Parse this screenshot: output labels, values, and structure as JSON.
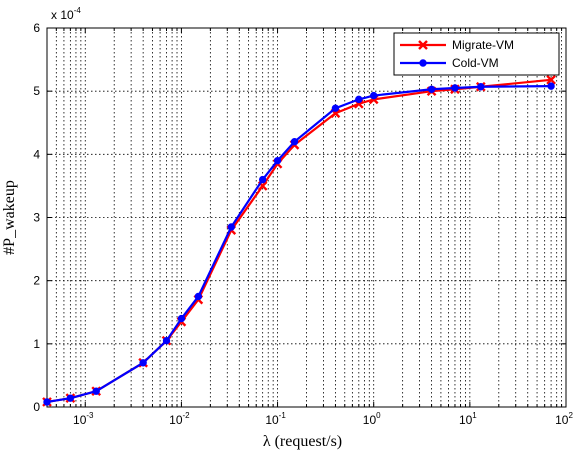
{
  "chart_data": {
    "type": "line",
    "title": "",
    "xlabel": "λ (request/s)",
    "ylabel": "#P_wakeup",
    "x_scale": "log",
    "xlim": [
      0.0004,
      100
    ],
    "ylim": [
      0,
      0.0006
    ],
    "y_multiplier_label": "x 10",
    "y_multiplier_exponent": "-4",
    "x_ticks": [
      {
        "base": "10",
        "exp": "-3",
        "value": 0.001
      },
      {
        "base": "10",
        "exp": "-2",
        "value": 0.01
      },
      {
        "base": "10",
        "exp": "-1",
        "value": 0.1
      },
      {
        "base": "10",
        "exp": "0",
        "value": 1
      },
      {
        "base": "10",
        "exp": "1",
        "value": 10
      },
      {
        "base": "10",
        "exp": "2",
        "value": 100
      }
    ],
    "y_ticks": [
      {
        "label": "0",
        "value": 0
      },
      {
        "label": "1",
        "value": 0.0001
      },
      {
        "label": "2",
        "value": 0.0002
      },
      {
        "label": "3",
        "value": 0.0003
      },
      {
        "label": "4",
        "value": 0.0004
      },
      {
        "label": "5",
        "value": 0.0005
      },
      {
        "label": "6",
        "value": 0.0006
      }
    ],
    "grid": true,
    "legend_position": "top-right",
    "series": [
      {
        "name": "Migrate-VM",
        "color": "#ff0000",
        "marker": "x",
        "x": [
          0.0004,
          0.0007,
          0.0013,
          0.004,
          0.007,
          0.01,
          0.015,
          0.033,
          0.07,
          0.1,
          0.15,
          0.4,
          0.7,
          1,
          4,
          7,
          13,
          70
        ],
        "y": [
          8e-06,
          1.4e-05,
          2.5e-05,
          7e-05,
          0.000105,
          0.000135,
          0.00017,
          0.00028,
          0.00035,
          0.000385,
          0.000415,
          0.000465,
          0.00048,
          0.000487,
          0.0005,
          0.000503,
          0.000507,
          0.000518
        ]
      },
      {
        "name": "Cold-VM",
        "color": "#0000ff",
        "marker": "o",
        "x": [
          0.0004,
          0.0007,
          0.0013,
          0.004,
          0.007,
          0.01,
          0.015,
          0.033,
          0.07,
          0.1,
          0.15,
          0.4,
          0.7,
          1,
          4,
          7,
          13,
          70
        ],
        "y": [
          8e-06,
          1.4e-05,
          2.5e-05,
          7e-05,
          0.000105,
          0.00014,
          0.000175,
          0.000285,
          0.00036,
          0.00039,
          0.00042,
          0.000473,
          0.000487,
          0.000493,
          0.000503,
          0.000505,
          0.000507,
          0.000508
        ]
      }
    ]
  }
}
